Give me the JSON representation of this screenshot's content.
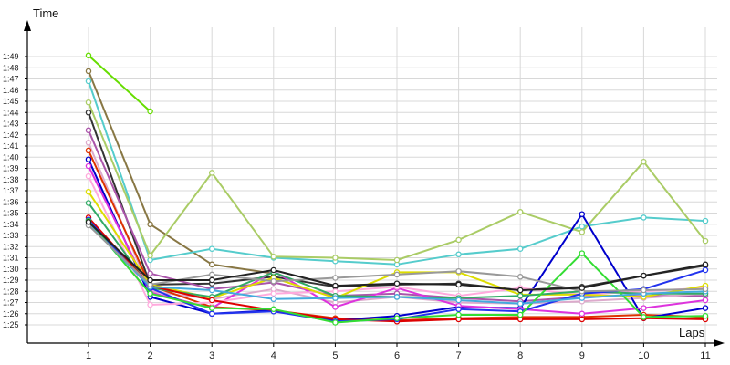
{
  "chart_data": {
    "type": "line",
    "title": "",
    "xlabel": "Laps",
    "ylabel": "Time",
    "x": [
      1,
      2,
      3,
      4,
      5,
      6,
      7,
      8,
      9,
      10,
      11
    ],
    "x_ticks": [
      "1",
      "2",
      "3",
      "4",
      "5",
      "6",
      "7",
      "8",
      "9",
      "10",
      "11"
    ],
    "y_ticks": [
      "1:25",
      "1:26",
      "1:27",
      "1:28",
      "1:29",
      "1:30",
      "1:31",
      "1:32",
      "1:33",
      "1:34",
      "1:35",
      "1:36",
      "1:37",
      "1:38",
      "1:39",
      "1:40",
      "1:41",
      "1:42",
      "1:43",
      "1:44",
      "1:45",
      "1:46",
      "1:47",
      "1:48",
      "1:49"
    ],
    "y_tick_seconds": [
      85,
      86,
      87,
      88,
      89,
      90,
      91,
      92,
      93,
      94,
      95,
      96,
      97,
      98,
      99,
      100,
      101,
      102,
      103,
      104,
      105,
      106,
      107,
      108,
      109
    ],
    "ylim_seconds": [
      84,
      111
    ],
    "grid": true,
    "series": [
      {
        "color": "#66dd00",
        "values": [
          109.1,
          104.1,
          null,
          null,
          null,
          null,
          null,
          null,
          null,
          null,
          null
        ]
      },
      {
        "color": "#887744",
        "values": [
          107.7,
          94.0,
          90.4,
          89.6,
          null,
          null,
          null,
          null,
          null,
          null,
          null
        ]
      },
      {
        "color": "#55cccc",
        "values": [
          106.8,
          90.8,
          91.8,
          91.0,
          90.7,
          90.4,
          91.3,
          91.8,
          93.8,
          94.6,
          94.3
        ]
      },
      {
        "color": "#aacc66",
        "values": [
          104.9,
          91.2,
          98.6,
          91.1,
          91.0,
          90.8,
          92.6,
          95.1,
          93.3,
          99.6,
          92.5
        ]
      },
      {
        "color": "#333333",
        "values": [
          104.0,
          88.6,
          88.7,
          89.3,
          88.4,
          88.6,
          88.7,
          88.1,
          88.4,
          89.4,
          90.3
        ]
      },
      {
        "color": "#aa55aa",
        "values": [
          102.4,
          89.6,
          88.2,
          88.8,
          87.6,
          87.8,
          87.4,
          87.1,
          87.5,
          87.6,
          87.6
        ]
      },
      {
        "color": "#ddaacc",
        "values": [
          101.3,
          88.0,
          87.3,
          88.2,
          87.0,
          87.5,
          87.0,
          86.9,
          87.1,
          87.4,
          87.8
        ]
      },
      {
        "color": "#dd3300",
        "values": [
          100.6,
          88.5,
          86.6,
          86.3,
          85.6,
          85.4,
          85.6,
          85.7,
          85.7,
          85.9,
          85.7
        ]
      },
      {
        "color": "#0000cc",
        "values": [
          99.8,
          87.5,
          86.0,
          86.3,
          85.4,
          85.8,
          86.6,
          86.5,
          94.9,
          85.6,
          86.5
        ]
      },
      {
        "color": "#dd33dd",
        "values": [
          99.2,
          87.9,
          86.5,
          89.8,
          86.6,
          88.3,
          86.7,
          86.4,
          86.0,
          86.5,
          87.2
        ]
      },
      {
        "color": "#ffaadd",
        "values": [
          98.3,
          86.8,
          87.0,
          87.8,
          88.0,
          88.4,
          87.6,
          88.3,
          87.7,
          88.0,
          88.3
        ]
      },
      {
        "color": "#dddd00",
        "values": [
          96.9,
          88.6,
          87.4,
          89.2,
          87.4,
          89.7,
          89.7,
          87.7,
          87.7,
          87.5,
          88.5
        ]
      },
      {
        "color": "#33aa66",
        "values": [
          95.9,
          88.3,
          87.5,
          89.7,
          87.6,
          87.5,
          87.4,
          87.6,
          88.0,
          87.8,
          87.8
        ]
      },
      {
        "color": "#dd0000",
        "values": [
          94.6,
          88.5,
          87.2,
          86.3,
          85.5,
          85.3,
          85.5,
          85.5,
          85.5,
          85.6,
          85.5
        ]
      },
      {
        "color": "#2233ee",
        "values": [
          94.4,
          88.3,
          86.0,
          86.2,
          85.3,
          85.5,
          86.4,
          86.2,
          87.8,
          88.2,
          89.9
        ]
      },
      {
        "color": "#33dd33",
        "values": [
          94.3,
          87.8,
          86.5,
          86.4,
          85.2,
          85.6,
          85.9,
          85.9,
          91.4,
          85.7,
          85.8
        ]
      },
      {
        "color": "#44aadd",
        "values": [
          94.0,
          88.4,
          88.1,
          87.3,
          87.4,
          87.5,
          87.2,
          86.9,
          87.4,
          87.8,
          88.0
        ]
      },
      {
        "color": "#999999",
        "values": [
          93.9,
          88.6,
          89.5,
          88.9,
          89.2,
          89.5,
          89.8,
          89.3,
          88.0,
          88.1,
          88.2
        ]
      },
      {
        "color": "#222222",
        "values": [
          94.2,
          89.0,
          89.0,
          89.9,
          88.5,
          88.7,
          88.6,
          88.1,
          88.3,
          89.4,
          90.4
        ]
      }
    ]
  }
}
